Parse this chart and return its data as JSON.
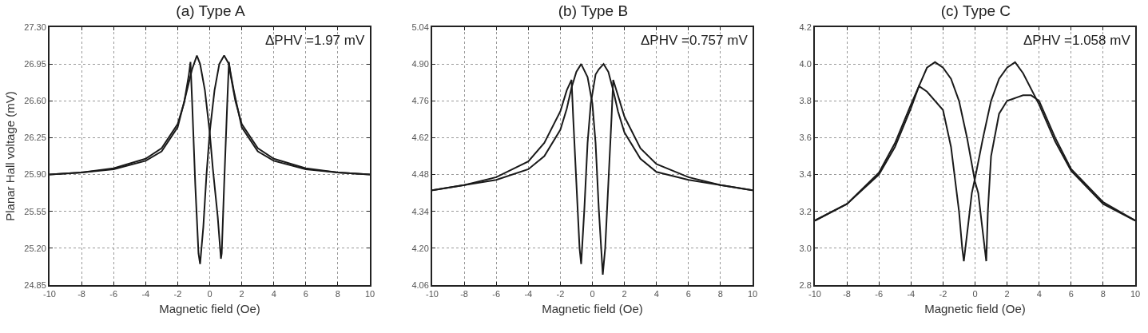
{
  "chart_data": [
    {
      "type": "line",
      "title": "(a) Type A",
      "xlabel": "Magnetic field (Oe)",
      "ylabel": "Planar Hall voltage (mV)",
      "annotations": [
        "ΔPHV =1.97 mV"
      ],
      "xlim": [
        -10,
        10
      ],
      "xticks": [
        -10,
        -8,
        -6,
        -4,
        -2,
        0,
        2,
        4,
        6,
        8,
        10
      ],
      "ylim": [
        24.85,
        27.3
      ],
      "yticks": [
        {
          "value": 24.85,
          "label": "24.85"
        },
        {
          "value": 25.2,
          "label": "25.20"
        },
        {
          "value": 25.55,
          "label": "25.55"
        },
        {
          "value": 25.9,
          "label": "25.90"
        },
        {
          "value": 26.25,
          "label": "26.25"
        },
        {
          "value": 26.6,
          "label": "26.60"
        },
        {
          "value": 26.95,
          "label": "26.95"
        },
        {
          "value": 27.3,
          "label": "27.30"
        }
      ],
      "grid": true,
      "line_style": "solid",
      "series": [
        {
          "color": "#1a1a1a",
          "x": [
            -10,
            -8,
            -6,
            -4,
            -3,
            -2,
            -1.6,
            -1.3,
            -1.2,
            -1.1,
            -0.9,
            -0.7,
            -0.6,
            -0.4,
            -0.2,
            0,
            0.3,
            0.6,
            0.9,
            1.2,
            1.5,
            2,
            3,
            4,
            6,
            8,
            10
          ],
          "values": [
            25.9,
            25.92,
            25.96,
            26.05,
            26.15,
            26.38,
            26.58,
            26.85,
            26.97,
            26.6,
            25.8,
            25.15,
            25.05,
            25.4,
            25.9,
            26.3,
            26.7,
            26.95,
            27.03,
            26.95,
            26.7,
            26.35,
            26.12,
            26.03,
            25.95,
            25.92,
            25.9
          ]
        },
        {
          "color": "#1a1a1a",
          "x": [
            10,
            8,
            6,
            4,
            3,
            2,
            1.6,
            1.3,
            1.2,
            1.1,
            0.9,
            0.75,
            0.7,
            0.5,
            0.2,
            0,
            -0.3,
            -0.6,
            -0.8,
            -1.1,
            -1.5,
            -2,
            -3,
            -4,
            -6,
            -8,
            -10
          ],
          "values": [
            25.9,
            25.92,
            25.96,
            26.05,
            26.15,
            26.38,
            26.6,
            26.85,
            26.97,
            26.6,
            25.8,
            25.15,
            25.1,
            25.5,
            25.95,
            26.3,
            26.7,
            26.95,
            27.03,
            26.9,
            26.65,
            26.35,
            26.12,
            26.03,
            25.95,
            25.92,
            25.9
          ]
        }
      ]
    },
    {
      "type": "line",
      "title": "(b) Type B",
      "xlabel": "Magnetic field (Oe)",
      "annotations": [
        "ΔPHV =0.757 mV"
      ],
      "xlim": [
        -10,
        10
      ],
      "xticks": [
        -10,
        -8,
        -6,
        -4,
        -2,
        0,
        2,
        4,
        6,
        8,
        10
      ],
      "ylim": [
        4.06,
        5.04
      ],
      "yticks": [
        4.06,
        {
          "value": 4.2,
          "label": "4.20"
        },
        4.34,
        4.48,
        4.62,
        4.76,
        {
          "value": 4.9,
          "label": "4.90"
        },
        5.04
      ],
      "grid": true,
      "line_style": "solid",
      "series": [
        {
          "color": "#1a1a1a",
          "x": [
            -10,
            -8,
            -6,
            -4,
            -3,
            -2,
            -1.6,
            -1.3,
            -1.2,
            -1,
            -0.8,
            -0.7,
            -0.5,
            -0.3,
            -0.1,
            0.2,
            0.4,
            0.7,
            1,
            1.3,
            1.6,
            2,
            3,
            4,
            6,
            8,
            10
          ],
          "values": [
            4.42,
            4.44,
            4.47,
            4.53,
            4.6,
            4.72,
            4.8,
            4.84,
            4.7,
            4.45,
            4.2,
            4.14,
            4.35,
            4.6,
            4.75,
            4.86,
            4.88,
            4.9,
            4.87,
            4.8,
            4.72,
            4.64,
            4.54,
            4.49,
            4.46,
            4.44,
            4.42
          ]
        },
        {
          "color": "#1a1a1a",
          "x": [
            10,
            8,
            6,
            4,
            3,
            2,
            1.6,
            1.3,
            1.2,
            1,
            0.8,
            0.65,
            0.4,
            0.2,
            0,
            -0.3,
            -0.7,
            -1,
            -1.3,
            -1.6,
            -2,
            -3,
            -4,
            -6,
            -8,
            -10
          ],
          "values": [
            4.42,
            4.44,
            4.47,
            4.52,
            4.58,
            4.7,
            4.78,
            4.84,
            4.7,
            4.45,
            4.2,
            4.1,
            4.35,
            4.6,
            4.75,
            4.85,
            4.9,
            4.87,
            4.81,
            4.73,
            4.65,
            4.55,
            4.5,
            4.46,
            4.44,
            4.42
          ]
        }
      ]
    },
    {
      "type": "line",
      "title": "(c) Type C",
      "xlabel": "Magnetic field (Oe)",
      "annotations": [
        "ΔPHV =1.058 mV"
      ],
      "xlim": [
        -10,
        10
      ],
      "xticks": [
        -10,
        -8,
        -6,
        -4,
        -2,
        0,
        2,
        4,
        6,
        8,
        10
      ],
      "ylim": [
        2.8,
        4.2
      ],
      "yticks": [
        2.8,
        {
          "value": 3,
          "label": "3.0"
        },
        3.2,
        3.4,
        3.6,
        3.8,
        {
          "value": 4,
          "label": "4.0"
        },
        4.2
      ],
      "grid": true,
      "line_style": "solid",
      "series": [
        {
          "color": "#1a1a1a",
          "x": [
            -10,
            -8,
            -6,
            -5,
            -4,
            -3.5,
            -3,
            -2,
            -1.5,
            -1,
            -0.8,
            -0.7,
            -0.4,
            -0.2,
            0,
            0.5,
            1,
            1.5,
            2,
            2.5,
            3,
            4,
            5,
            6,
            8,
            10
          ],
          "values": [
            3.15,
            3.24,
            3.4,
            3.55,
            3.76,
            3.88,
            3.85,
            3.75,
            3.55,
            3.2,
            3.0,
            2.93,
            3.15,
            3.3,
            3.38,
            3.6,
            3.8,
            3.92,
            3.98,
            4.01,
            3.95,
            3.78,
            3.58,
            3.42,
            3.24,
            3.15
          ]
        },
        {
          "color": "#1a1a1a",
          "x": [
            10,
            8,
            6,
            5,
            4,
            3.5,
            3,
            2,
            1.5,
            1,
            0.8,
            0.7,
            0.4,
            0.2,
            0,
            -0.5,
            -1,
            -1.5,
            -2,
            -2.5,
            -3,
            -4,
            -5,
            -6,
            -8,
            -10
          ],
          "values": [
            3.15,
            3.25,
            3.43,
            3.6,
            3.8,
            3.83,
            3.83,
            3.8,
            3.73,
            3.5,
            3.2,
            2.93,
            3.15,
            3.3,
            3.36,
            3.6,
            3.8,
            3.92,
            3.98,
            4.01,
            3.98,
            3.78,
            3.57,
            3.41,
            3.24,
            3.15
          ]
        }
      ]
    }
  ]
}
